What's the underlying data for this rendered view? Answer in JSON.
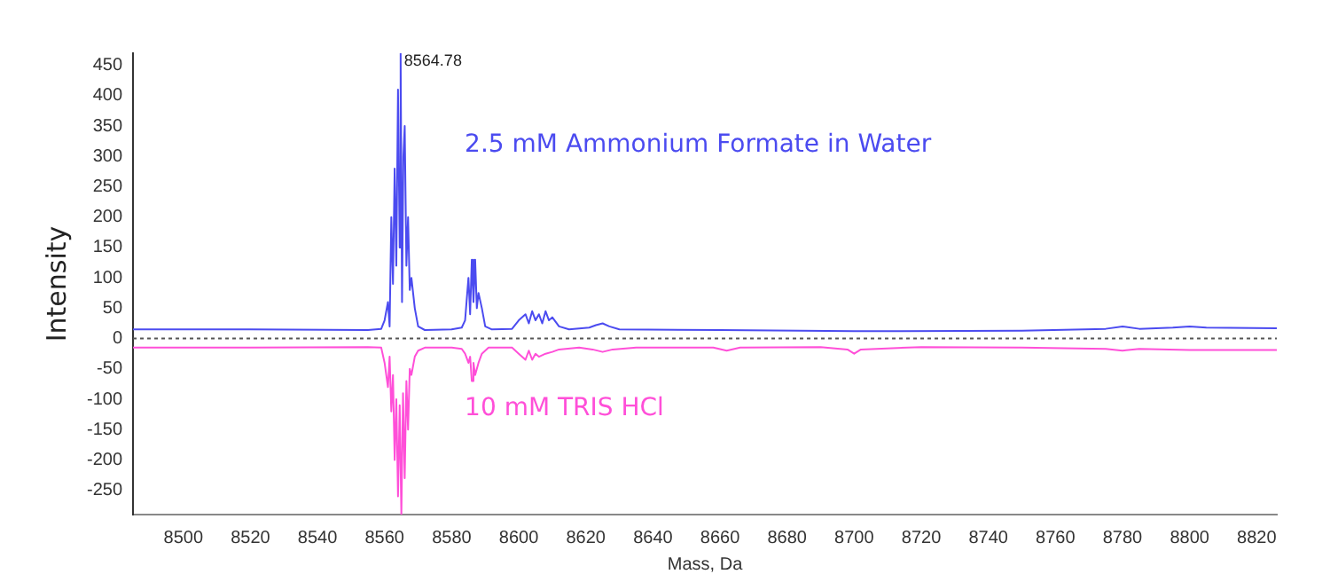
{
  "chart_data": {
    "type": "line",
    "xlabel": "Mass, Da",
    "ylabel": "Intensity",
    "xlim": [
      8485,
      8826
    ],
    "ylim": [
      -290,
      470
    ],
    "xticks": [
      8500,
      8520,
      8540,
      8560,
      8580,
      8600,
      8620,
      8640,
      8660,
      8680,
      8700,
      8720,
      8740,
      8760,
      8780,
      8800,
      8820
    ],
    "yticks": [
      -250,
      -200,
      -150,
      -100,
      -50,
      0,
      50,
      100,
      150,
      200,
      250,
      300,
      350,
      400,
      450
    ],
    "grid": false,
    "legend": false,
    "marker": "none",
    "line_style": "solid",
    "ref_lines": [
      {
        "axis": "y",
        "value": 0,
        "color": "#555555",
        "line_style": "dotted"
      }
    ],
    "annotations": [
      {
        "text": "8564.78",
        "x": 8564.78,
        "y": 470
      }
    ],
    "series": [
      {
        "name": "2.5 mM Ammonium Formate in Water",
        "color": "#4b4bf0",
        "x": [
          8485,
          8520,
          8555,
          8559,
          8560,
          8561,
          8561.5,
          8562,
          8562.5,
          8563,
          8563.5,
          8564,
          8564.5,
          8564.78,
          8565.2,
          8565.6,
          8566,
          8566.5,
          8567,
          8567.5,
          8568,
          8569,
          8570,
          8572,
          8580,
          8583,
          8584,
          8585,
          8585.5,
          8586,
          8586.5,
          8587,
          8587.5,
          8588,
          8589,
          8590,
          8592,
          8598,
          8600,
          8602,
          8603,
          8604,
          8605,
          8606,
          8607,
          8608,
          8609,
          8610,
          8612,
          8615,
          8621,
          8623,
          8625,
          8627,
          8630,
          8660,
          8700,
          8750,
          8775,
          8780,
          8785,
          8795,
          8800,
          8805,
          8826
        ],
        "values": [
          15,
          15,
          14,
          16,
          30,
          60,
          20,
          200,
          90,
          280,
          120,
          410,
          150,
          470,
          60,
          300,
          350,
          120,
          200,
          80,
          100,
          50,
          20,
          14,
          15,
          18,
          30,
          100,
          40,
          130,
          60,
          130,
          50,
          75,
          50,
          20,
          15,
          16,
          30,
          40,
          25,
          45,
          30,
          40,
          25,
          45,
          30,
          35,
          20,
          15,
          18,
          22,
          25,
          20,
          15,
          14,
          12,
          13,
          16,
          20,
          16,
          18,
          20,
          18,
          17
        ]
      },
      {
        "name": "10 mM TRIS HCl",
        "color": "#ff4fd8",
        "x": [
          8485,
          8520,
          8555,
          8559,
          8560,
          8561,
          8561.5,
          8562,
          8562.5,
          8563,
          8563.5,
          8564,
          8564.5,
          8565,
          8565.5,
          8566,
          8566.5,
          8567,
          8567.5,
          8568,
          8569,
          8570,
          8572,
          8580,
          8583,
          8584,
          8585,
          8585.5,
          8586,
          8586.5,
          8587,
          8588,
          8589,
          8591,
          8598,
          8600,
          8602,
          8603,
          8604,
          8605,
          8606,
          8608,
          8610,
          8612,
          8618,
          8622,
          8625,
          8628,
          8635,
          8658,
          8662,
          8666,
          8690,
          8698,
          8700,
          8702,
          8720,
          8750,
          8775,
          8780,
          8785,
          8800,
          8826
        ],
        "values": [
          -15,
          -15,
          -14,
          -15,
          -40,
          -80,
          -30,
          -120,
          -60,
          -200,
          -100,
          -260,
          -110,
          -290,
          -90,
          -230,
          -70,
          -150,
          -50,
          -60,
          -30,
          -20,
          -15,
          -15,
          -17,
          -25,
          -40,
          -30,
          -70,
          -40,
          -60,
          -40,
          -25,
          -15,
          -15,
          -25,
          -35,
          -20,
          -35,
          -25,
          -30,
          -25,
          -22,
          -18,
          -15,
          -18,
          -22,
          -18,
          -15,
          -15,
          -20,
          -15,
          -14,
          -18,
          -25,
          -18,
          -14,
          -15,
          -17,
          -20,
          -17,
          -19,
          -19
        ]
      }
    ]
  }
}
